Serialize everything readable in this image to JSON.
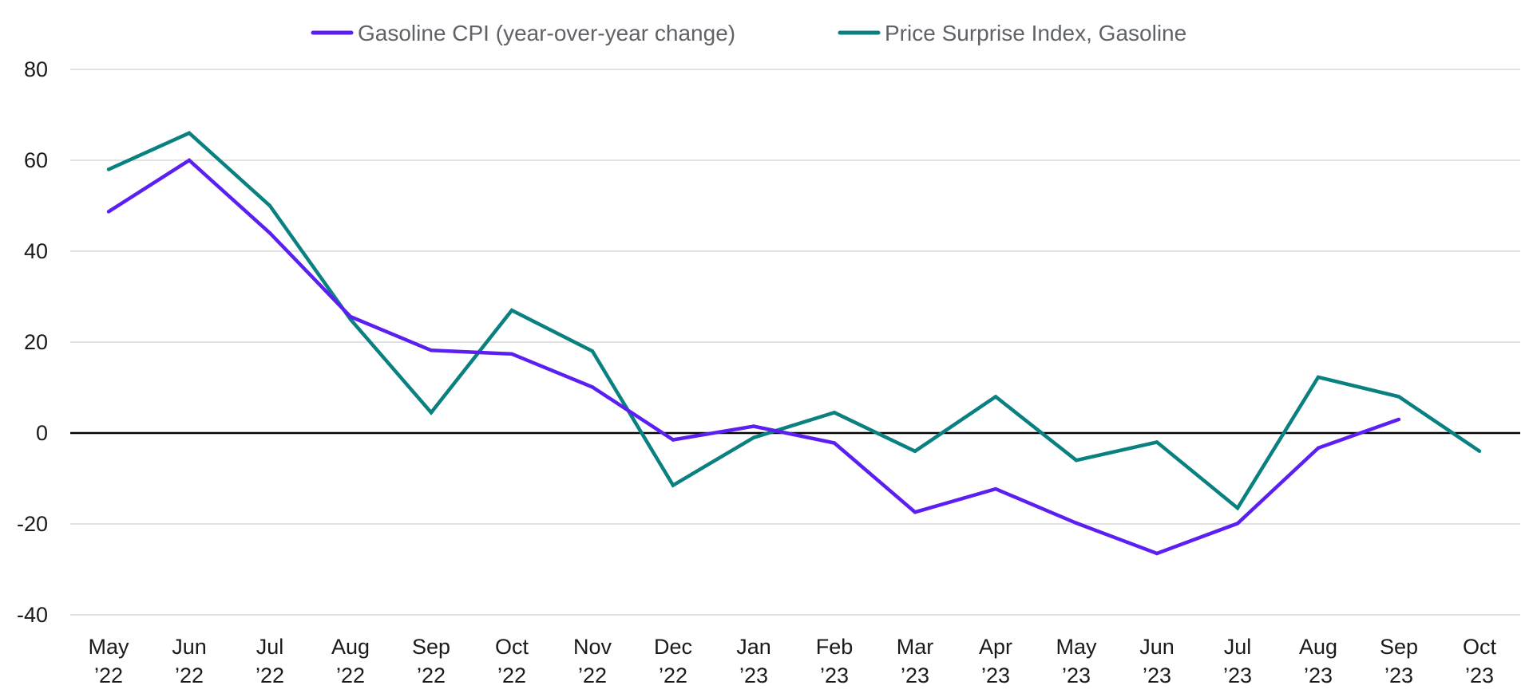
{
  "chart_data": {
    "type": "line",
    "title": "",
    "xlabel": "",
    "ylabel": "",
    "ylim": [
      -40,
      80
    ],
    "yticks": [
      "80",
      "60",
      "40",
      "20",
      "0",
      "-20",
      "-40"
    ],
    "grid": true,
    "legend_position": "top-center",
    "categories": [
      [
        "May",
        "’22"
      ],
      [
        "Jun",
        "’22"
      ],
      [
        "Jul",
        "’22"
      ],
      [
        "Aug",
        "’22"
      ],
      [
        "Sep",
        "’22"
      ],
      [
        "Oct",
        "’22"
      ],
      [
        "Nov",
        "’22"
      ],
      [
        "Dec",
        "’22"
      ],
      [
        "Jan",
        "’23"
      ],
      [
        "Feb",
        "’23"
      ],
      [
        "Mar",
        "’23"
      ],
      [
        "Apr",
        "’23"
      ],
      [
        "May",
        "’23"
      ],
      [
        "Jun",
        "’23"
      ],
      [
        "Jul",
        "’23"
      ],
      [
        "Aug",
        "’23"
      ],
      [
        "Sep",
        "’23"
      ],
      [
        "Oct",
        "’23"
      ]
    ],
    "series": [
      {
        "name": "Gasoline CPI (year-over-year change)",
        "color": "#5b1ff2",
        "values": [
          48.7,
          60.0,
          44.0,
          25.6,
          18.2,
          17.4,
          10.1,
          -1.5,
          1.5,
          -2.2,
          -17.4,
          -12.3,
          -19.8,
          -26.5,
          -19.9,
          -3.3,
          3.0,
          null
        ]
      },
      {
        "name": "Price Surprise Index, Gasoline",
        "color": "#0a8080",
        "values": [
          58.0,
          66.0,
          50.0,
          25.0,
          4.5,
          27.0,
          18.0,
          -11.5,
          -1.0,
          4.5,
          -4.0,
          8.0,
          -6.0,
          -2.0,
          -16.5,
          12.3,
          8.0,
          -4.0
        ]
      }
    ]
  }
}
